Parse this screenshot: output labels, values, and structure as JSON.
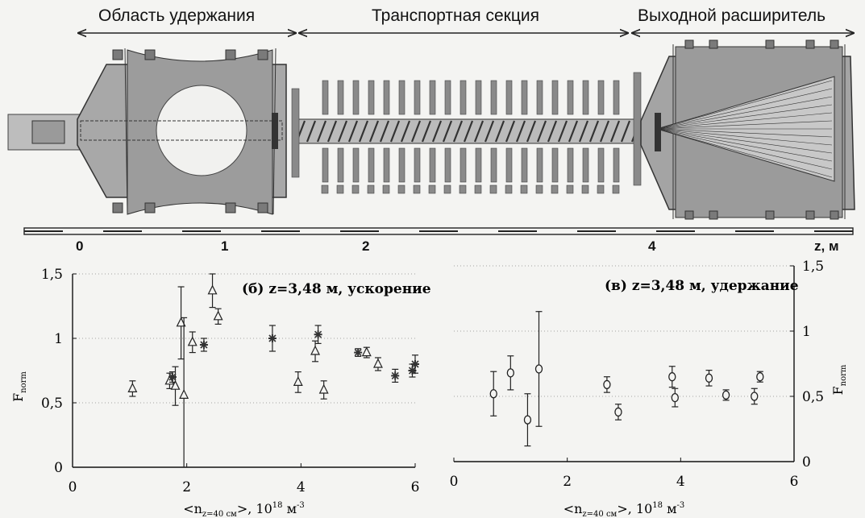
{
  "sections": {
    "confinement": "Область удержания",
    "transport": "Транспортная секция",
    "expander": "Выходной расширитель"
  },
  "device_scale": {
    "ticks": [
      "0",
      "1",
      "2",
      "4"
    ],
    "unit": "z, м"
  },
  "chart_data": [
    {
      "type": "scatter",
      "panel": "left",
      "annotation": "(б) z=3,48 м, ускорение",
      "xlabel": "<n_{z=40 см}>, 10^{18} м^{-3}",
      "ylabel": "F_norm",
      "xlim": [
        0,
        6
      ],
      "ylim": [
        0,
        1.5
      ],
      "xticks": [
        "0",
        "2",
        "4",
        "6"
      ],
      "yticks": [
        "0",
        "0,5",
        "1",
        "1,5"
      ],
      "grid": "horizontal-dotted",
      "series": [
        {
          "marker": "triangle",
          "points": [
            {
              "x": 1.05,
              "y": 0.61,
              "err": 0.06
            },
            {
              "x": 1.7,
              "y": 0.67,
              "err": 0.06
            },
            {
              "x": 1.8,
              "y": 0.63,
              "err": 0.15
            },
            {
              "x": 1.9,
              "y": 1.12,
              "err": 0.28
            },
            {
              "x": 1.95,
              "y": 0.56,
              "err": 0.6
            },
            {
              "x": 2.1,
              "y": 0.97,
              "err": 0.08
            },
            {
              "x": 2.45,
              "y": 1.37,
              "err": 0.13
            },
            {
              "x": 2.55,
              "y": 1.17,
              "err": 0.06
            },
            {
              "x": 3.95,
              "y": 0.66,
              "err": 0.08
            },
            {
              "x": 4.25,
              "y": 0.9,
              "err": 0.08
            },
            {
              "x": 4.4,
              "y": 0.6,
              "err": 0.07
            },
            {
              "x": 5.15,
              "y": 0.89,
              "err": 0.04
            },
            {
              "x": 5.35,
              "y": 0.8,
              "err": 0.05
            }
          ]
        },
        {
          "marker": "star",
          "points": [
            {
              "x": 1.75,
              "y": 0.7,
              "err": 0.04
            },
            {
              "x": 2.3,
              "y": 0.95,
              "err": 0.05
            },
            {
              "x": 3.5,
              "y": 1.0,
              "err": 0.1
            },
            {
              "x": 4.3,
              "y": 1.03,
              "err": 0.07
            },
            {
              "x": 5.0,
              "y": 0.89,
              "err": 0.03
            },
            {
              "x": 5.65,
              "y": 0.71,
              "err": 0.05
            },
            {
              "x": 5.95,
              "y": 0.75,
              "err": 0.05
            },
            {
              "x": 6.0,
              "y": 0.8,
              "err": 0.07
            }
          ]
        }
      ]
    },
    {
      "type": "scatter",
      "panel": "right",
      "annotation": "(в) z=3,48 м, удержание",
      "xlabel": "<n_{z=40 см}>, 10^{18} м^{-3}",
      "ylabel": "F_norm",
      "xlim": [
        0,
        6
      ],
      "ylim": [
        0,
        1.5
      ],
      "xticks": [
        "0",
        "2",
        "4",
        "6"
      ],
      "yticks": [
        "0",
        "0,5",
        "1",
        "1,5"
      ],
      "grid": "horizontal-dotted",
      "series": [
        {
          "marker": "circle",
          "points": [
            {
              "x": 0.7,
              "y": 0.52,
              "err": 0.17
            },
            {
              "x": 1.0,
              "y": 0.68,
              "err": 0.13
            },
            {
              "x": 1.3,
              "y": 0.32,
              "err": 0.2
            },
            {
              "x": 1.5,
              "y": 0.71,
              "err": 0.44
            },
            {
              "x": 2.7,
              "y": 0.59,
              "err": 0.06
            },
            {
              "x": 2.9,
              "y": 0.38,
              "err": 0.06
            },
            {
              "x": 3.85,
              "y": 0.65,
              "err": 0.08
            },
            {
              "x": 3.9,
              "y": 0.49,
              "err": 0.07
            },
            {
              "x": 4.5,
              "y": 0.64,
              "err": 0.06
            },
            {
              "x": 4.8,
              "y": 0.51,
              "err": 0.04
            },
            {
              "x": 5.3,
              "y": 0.5,
              "err": 0.06
            },
            {
              "x": 5.4,
              "y": 0.65,
              "err": 0.04
            }
          ]
        }
      ]
    }
  ]
}
